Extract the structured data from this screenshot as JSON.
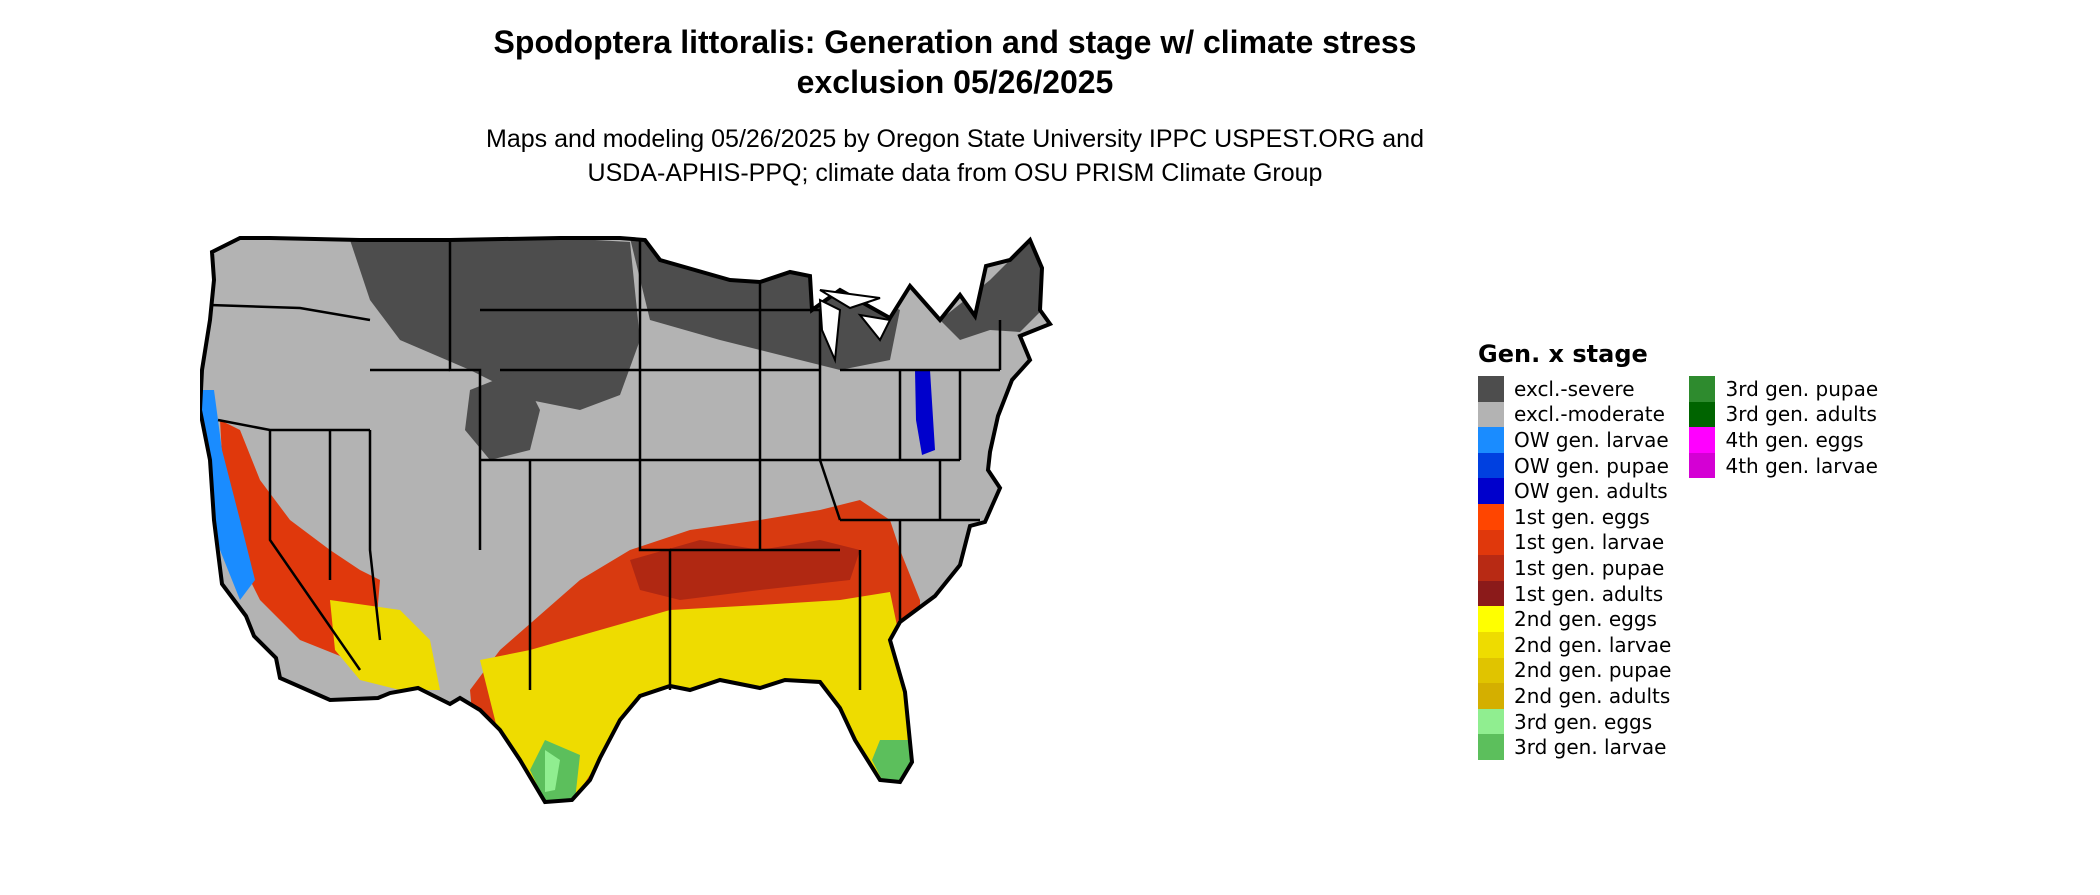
{
  "title_line1": "Spodoptera littoralis: Generation and stage w/ climate stress",
  "title_line2": "exclusion 05/26/2025",
  "subtitle_line1": "Maps and modeling 05/26/2025 by Oregon State University IPPC USPEST.ORG and",
  "subtitle_line2": "USDA-APHIS-PPQ; climate data from OSU PRISM Climate Group",
  "legend": {
    "title": "Gen. x stage",
    "col1": [
      {
        "label": "excl.-severe",
        "color": "#4d4d4d"
      },
      {
        "label": "excl.-moderate",
        "color": "#b3b3b3"
      },
      {
        "label": "OW gen. larvae",
        "color": "#1a8cff"
      },
      {
        "label": "OW gen. pupae",
        "color": "#0040e0"
      },
      {
        "label": "OW gen. adults",
        "color": "#0000cc"
      },
      {
        "label": "1st gen. eggs",
        "color": "#ff4500"
      },
      {
        "label": "1st gen. larvae",
        "color": "#e0380c"
      },
      {
        "label": "1st gen. pupae",
        "color": "#b82a14"
      },
      {
        "label": "1st gen. adults",
        "color": "#8b1a1a"
      },
      {
        "label": "2nd gen. eggs",
        "color": "#ffff00"
      },
      {
        "label": "2nd gen. larvae",
        "color": "#eedc00"
      },
      {
        "label": "2nd gen. pupae",
        "color": "#e0c400"
      },
      {
        "label": "2nd gen. adults",
        "color": "#d4af00"
      },
      {
        "label": "3rd gen. eggs",
        "color": "#90ee90"
      },
      {
        "label": "3rd gen. larvae",
        "color": "#5cbf5c"
      }
    ],
    "col2": [
      {
        "label": "3rd gen. pupae",
        "color": "#2e8b2e"
      },
      {
        "label": "3rd gen. adults",
        "color": "#006400"
      },
      {
        "label": "4th gen. eggs",
        "color": "#ff00ff"
      },
      {
        "label": "4th gen. larvae",
        "color": "#d400d4"
      }
    ]
  }
}
